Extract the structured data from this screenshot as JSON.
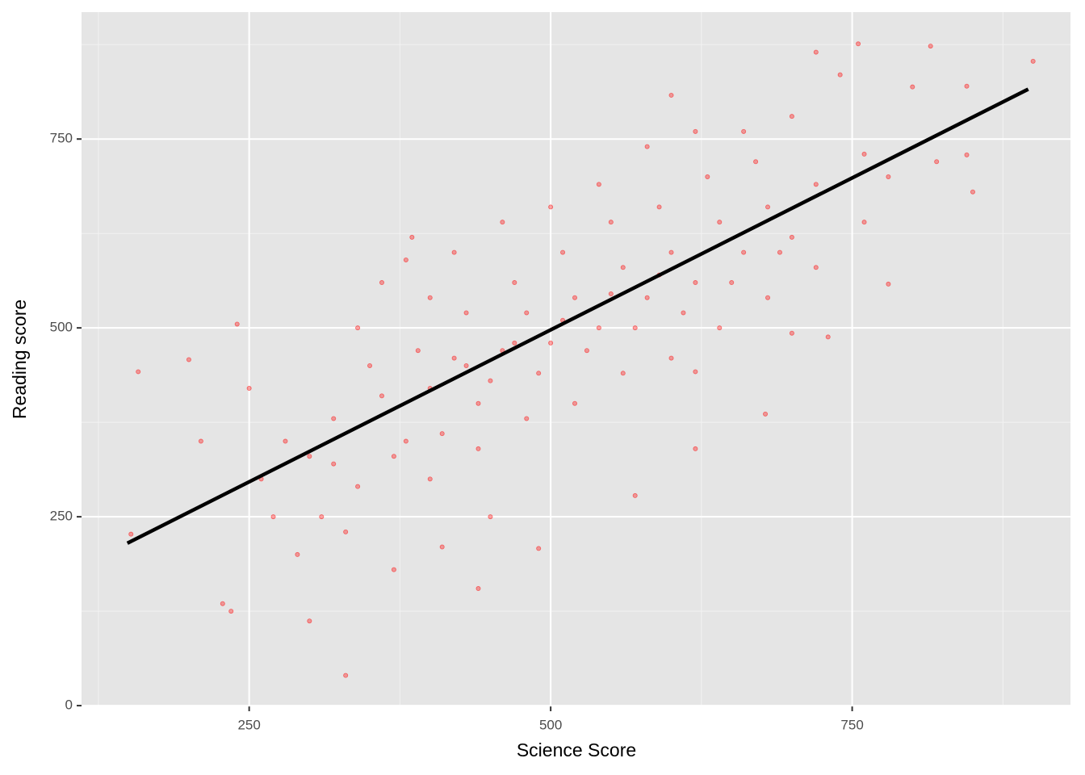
{
  "chart_data": {
    "type": "scatter",
    "x_label": "Science Score",
    "y_label": "Reading score",
    "xlim": [
      111,
      931
    ],
    "ylim": [
      -1,
      918
    ],
    "xticks": [
      250,
      500,
      750
    ],
    "yticks": [
      0,
      250,
      500,
      750
    ],
    "minor_xticks": [
      125,
      375,
      625,
      875
    ],
    "minor_yticks": [
      125,
      375,
      625,
      875
    ],
    "grid": true,
    "series": [
      {
        "color": "#ff0000",
        "x": [
          152,
          158,
          330,
          755,
          815,
          900,
          600,
          850,
          678,
          300,
          200,
          240,
          235,
          228,
          385,
          620,
          570,
          440,
          490,
          620,
          720,
          740,
          800,
          845,
          845,
          780,
          730,
          700,
          300,
          320,
          340,
          360,
          380,
          400,
          420,
          440,
          460,
          480,
          500,
          520,
          540,
          560,
          580,
          600,
          620,
          640,
          660,
          680,
          700,
          720,
          350,
          370,
          390,
          410,
          430,
          450,
          470,
          490,
          510,
          530,
          550,
          570,
          590,
          610,
          630,
          650,
          670,
          690,
          270,
          280,
          260,
          250,
          310,
          330,
          290,
          340,
          360,
          380,
          400,
          420,
          460,
          500,
          540,
          580,
          620,
          660,
          700,
          520,
          560,
          600,
          640,
          680,
          720,
          760,
          780,
          820,
          760,
          400,
          440,
          480,
          320,
          430,
          470,
          510,
          550,
          590,
          450,
          410,
          370,
          210
        ],
        "y": [
          227,
          442,
          40,
          876,
          873,
          853,
          808,
          680,
          386,
          112,
          458,
          505,
          125,
          135,
          620,
          340,
          278,
          155,
          208,
          442,
          865,
          835,
          819,
          820,
          729,
          558,
          488,
          493,
          330,
          380,
          290,
          410,
          350,
          420,
          460,
          400,
          470,
          520,
          480,
          540,
          500,
          580,
          540,
          600,
          560,
          640,
          600,
          660,
          620,
          690,
          450,
          330,
          470,
          360,
          520,
          430,
          560,
          440,
          600,
          470,
          640,
          500,
          660,
          520,
          700,
          560,
          720,
          600,
          250,
          350,
          300,
          420,
          250,
          230,
          200,
          500,
          560,
          590,
          540,
          600,
          640,
          660,
          690,
          740,
          760,
          760,
          780,
          400,
          440,
          460,
          500,
          540,
          580,
          640,
          700,
          720,
          730,
          300,
          340,
          380,
          320,
          450,
          480,
          510,
          545,
          570,
          250,
          210,
          180,
          350
        ]
      },
      {
        "type": "line",
        "color": "#000000",
        "x": [
          149,
          896
        ],
        "y": [
          215,
          816
        ]
      }
    ]
  }
}
